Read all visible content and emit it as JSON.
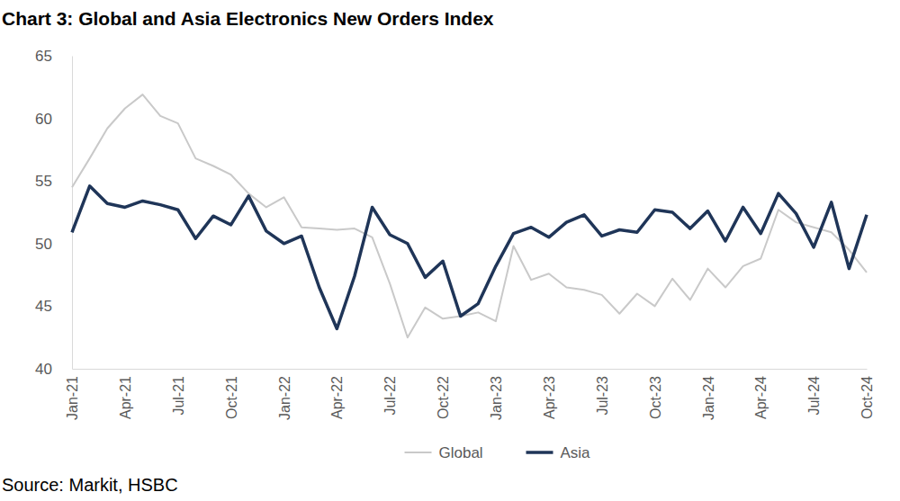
{
  "chart_data": {
    "type": "line",
    "title": "Chart 3: Global and Asia Electronics New Orders Index",
    "source": "Source: Markit, HSBC",
    "categories": [
      "Jan-21",
      null,
      null,
      "Apr-21",
      null,
      null,
      "Jul-21",
      null,
      null,
      "Oct-21",
      null,
      null,
      "Jan-22",
      null,
      null,
      "Apr-22",
      null,
      null,
      "Jul-22",
      null,
      null,
      "Oct-22",
      null,
      null,
      "Jan-23",
      null,
      null,
      "Apr-23",
      null,
      null,
      "Jul-23",
      null,
      null,
      "Oct-23",
      null,
      null,
      "Jan-24",
      null,
      null,
      "Apr-24",
      null,
      null,
      "Jul-24",
      null,
      null,
      "Oct-24"
    ],
    "series": [
      {
        "name": "Global",
        "color": "#c9c9c9",
        "values": [
          54.5,
          56.8,
          59.2,
          60.8,
          61.9,
          60.2,
          59.6,
          56.8,
          56.2,
          55.5,
          54.0,
          52.9,
          53.7,
          51.3,
          51.2,
          51.1,
          51.2,
          50.5,
          46.8,
          42.5,
          44.9,
          44.0,
          44.2,
          44.5,
          43.8,
          49.8,
          47.1,
          47.6,
          46.5,
          46.3,
          45.9,
          44.4,
          46.0,
          45.0,
          47.2,
          45.5,
          48.0,
          46.5,
          48.2,
          48.8,
          52.7,
          51.7,
          51.3,
          50.9,
          49.5,
          47.7
        ]
      },
      {
        "name": "Asia",
        "color": "#1f3558",
        "values": [
          50.9,
          54.6,
          53.2,
          52.9,
          53.4,
          53.1,
          52.7,
          50.4,
          52.2,
          51.5,
          53.8,
          51.0,
          50.0,
          50.6,
          46.5,
          43.2,
          47.4,
          52.9,
          50.7,
          50.0,
          47.3,
          48.6,
          44.2,
          45.2,
          48.2,
          50.8,
          51.3,
          50.5,
          51.7,
          52.3,
          50.6,
          51.1,
          50.9,
          52.7,
          52.5,
          51.2,
          52.6,
          50.2,
          52.9,
          50.8,
          54.0,
          52.4,
          49.7,
          53.3,
          48.0,
          52.3
        ]
      }
    ],
    "ylim": [
      40,
      65
    ],
    "yticks": [
      40,
      45,
      50,
      55,
      60,
      65
    ],
    "grid": false,
    "legend": "bottom"
  }
}
